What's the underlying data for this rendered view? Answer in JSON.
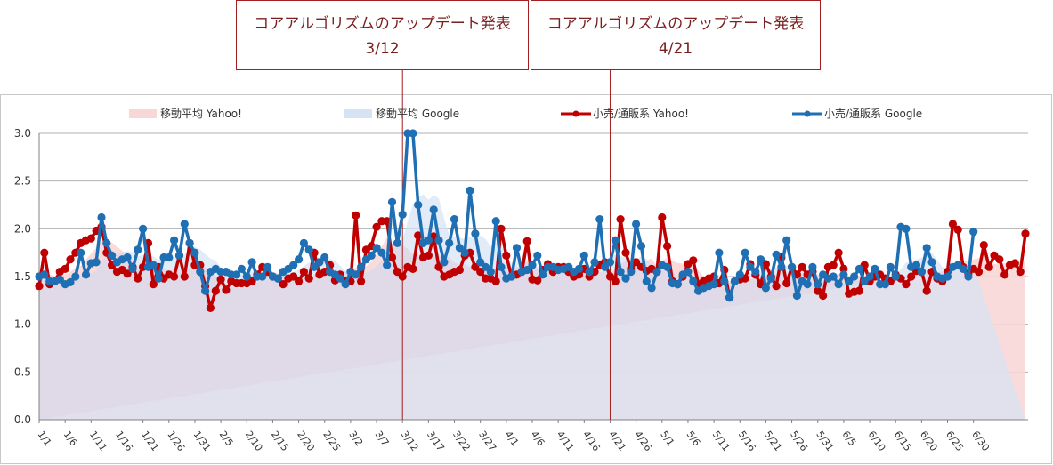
{
  "chart_data": {
    "type": "line",
    "title": "",
    "xlabel": "",
    "ylabel": "",
    "ylim": [
      0,
      3
    ],
    "yticks": [
      "0.0",
      "0.5",
      "1.0",
      "1.5",
      "2.0",
      "2.5",
      "3.0"
    ],
    "xtick_labels": [
      "1/1",
      "1/6",
      "1/11",
      "1/16",
      "1/21",
      "1/26",
      "1/31",
      "2/5",
      "2/10",
      "2/15",
      "2/20",
      "2/25",
      "3/2",
      "3/7",
      "3/12",
      "3/17",
      "3/22",
      "3/27",
      "4/1",
      "4/6",
      "4/11",
      "4/16",
      "4/21",
      "4/26",
      "5/1",
      "5/6",
      "5/11",
      "5/16",
      "5/21",
      "5/26",
      "5/31",
      "6/5",
      "6/10",
      "6/15",
      "6/20",
      "6/25",
      "6/30"
    ],
    "legend": [
      {
        "key": "ma_yahoo",
        "label": "移動平均 Yahoo!"
      },
      {
        "key": "ma_google",
        "label": "移動平均 Google"
      },
      {
        "key": "yahoo",
        "label": "小売/通販系 Yahoo!"
      },
      {
        "key": "google",
        "label": "小売/通販系 Google"
      }
    ],
    "colors": {
      "yahoo": "#c00000",
      "google": "#1f6fb4",
      "ma_yahoo": "#f9d7d7",
      "ma_google": "#d6e3f5",
      "ma_overlap": "#e0dae8",
      "grid": "#b0b0b0",
      "annotation": "#a31f1f"
    },
    "annotations": [
      {
        "title": "コアアルゴリズムのアップデート発表",
        "date": "3/12",
        "day_index": 70
      },
      {
        "title": "コアアルゴリズムのアップデート発表",
        "date": "4/21",
        "day_index": 110
      }
    ],
    "series": [
      {
        "name": "小売/通販系 Yahoo!",
        "key": "yahoo",
        "values": [
          1.4,
          1.75,
          1.42,
          1.45,
          1.55,
          1.58,
          1.68,
          1.75,
          1.85,
          1.88,
          1.9,
          1.98,
          2.02,
          1.75,
          1.62,
          1.55,
          1.57,
          1.53,
          1.6,
          1.48,
          1.6,
          1.85,
          1.42,
          1.6,
          1.48,
          1.52,
          1.5,
          1.72,
          1.5,
          1.85,
          1.62,
          1.62,
          1.4,
          1.17,
          1.35,
          1.47,
          1.36,
          1.45,
          1.43,
          1.43,
          1.43,
          1.45,
          1.52,
          1.6,
          1.55,
          1.5,
          1.48,
          1.42,
          1.48,
          1.5,
          1.45,
          1.55,
          1.48,
          1.75,
          1.52,
          1.55,
          1.62,
          1.46,
          1.52,
          1.45,
          1.45,
          2.14,
          1.45,
          1.78,
          1.82,
          2.02,
          2.08,
          2.08,
          1.7,
          1.55,
          1.5,
          1.6,
          1.58,
          1.93,
          1.7,
          1.72,
          1.92,
          1.6,
          1.5,
          1.52,
          1.55,
          1.57,
          1.72,
          1.75,
          1.6,
          1.55,
          1.48,
          1.48,
          1.45,
          2.0,
          1.72,
          1.5,
          1.52,
          1.55,
          1.87,
          1.47,
          1.46,
          1.57,
          1.63,
          1.55,
          1.6,
          1.6,
          1.55,
          1.5,
          1.52,
          1.58,
          1.5,
          1.55,
          1.62,
          1.65,
          1.5,
          1.45,
          2.1,
          1.75,
          1.58,
          1.65,
          1.6,
          1.56,
          1.58,
          1.55,
          2.12,
          1.82,
          1.45,
          1.42,
          1.5,
          1.63,
          1.67,
          1.42,
          1.45,
          1.48,
          1.5,
          1.43,
          1.57,
          1.28,
          1.45,
          1.47,
          1.48,
          1.63,
          1.52,
          1.42,
          1.63,
          1.5,
          1.4,
          1.7,
          1.43,
          1.6,
          1.52,
          1.6,
          1.52,
          1.55,
          1.35,
          1.3,
          1.6,
          1.62,
          1.75,
          1.58,
          1.32,
          1.34,
          1.35,
          1.62,
          1.45,
          1.5,
          1.52,
          1.48,
          1.45,
          1.52,
          1.48,
          1.42,
          1.5,
          1.56,
          1.55,
          1.35,
          1.55,
          1.48,
          1.45,
          1.55,
          2.05,
          1.99,
          1.6,
          1.53,
          1.58,
          1.55,
          1.83,
          1.6,
          1.72,
          1.68,
          1.52,
          1.62,
          1.64,
          1.55,
          1.95
        ]
      },
      {
        "name": "小売/通販系 Google",
        "key": "google",
        "values": [
          1.5,
          1.52,
          1.45,
          1.45,
          1.47,
          1.42,
          1.44,
          1.5,
          1.75,
          1.52,
          1.64,
          1.65,
          2.12,
          1.85,
          1.72,
          1.65,
          1.68,
          1.7,
          1.58,
          1.78,
          2.0,
          1.6,
          1.62,
          1.48,
          1.7,
          1.7,
          1.88,
          1.72,
          2.05,
          1.85,
          1.75,
          1.55,
          1.35,
          1.55,
          1.58,
          1.55,
          1.55,
          1.52,
          1.52,
          1.58,
          1.5,
          1.65,
          1.5,
          1.5,
          1.6,
          1.5,
          1.48,
          1.55,
          1.58,
          1.62,
          1.68,
          1.85,
          1.78,
          1.6,
          1.65,
          1.7,
          1.55,
          1.52,
          1.48,
          1.42,
          1.55,
          1.52,
          1.6,
          1.68,
          1.72,
          1.8,
          1.75,
          1.62,
          2.28,
          1.85,
          2.15,
          3.1,
          3.05,
          2.25,
          1.85,
          1.88,
          2.2,
          1.88,
          1.65,
          1.85,
          2.1,
          1.8,
          1.75,
          2.4,
          1.95,
          1.65,
          1.6,
          1.55,
          2.08,
          1.6,
          1.48,
          1.5,
          1.8,
          1.55,
          1.57,
          1.62,
          1.72,
          1.52,
          1.6,
          1.6,
          1.57,
          1.58,
          1.6,
          1.55,
          1.58,
          1.72,
          1.55,
          1.65,
          2.1,
          1.6,
          1.65,
          1.88,
          1.55,
          1.48,
          1.55,
          2.05,
          1.82,
          1.45,
          1.38,
          1.55,
          1.62,
          1.6,
          1.43,
          1.42,
          1.52,
          1.55,
          1.45,
          1.35,
          1.38,
          1.4,
          1.42,
          1.75,
          1.45,
          1.28,
          1.45,
          1.52,
          1.75,
          1.6,
          1.55,
          1.68,
          1.38,
          1.48,
          1.73,
          1.6,
          1.88,
          1.6,
          1.3,
          1.45,
          1.42,
          1.6,
          1.42,
          1.52,
          1.48,
          1.5,
          1.42,
          1.52,
          1.45,
          1.5,
          1.58,
          1.45,
          1.5,
          1.58,
          1.42,
          1.42,
          1.6,
          1.5,
          2.02,
          2.0,
          1.6,
          1.62,
          1.55,
          1.8,
          1.65,
          1.5,
          1.48,
          1.5,
          1.6,
          1.62,
          1.58,
          1.5,
          1.97
        ]
      }
    ]
  }
}
